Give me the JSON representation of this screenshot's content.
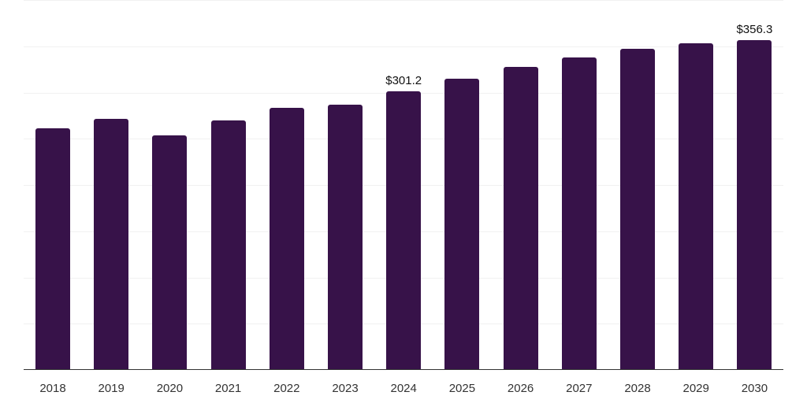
{
  "chart_data": {
    "type": "bar",
    "title": "",
    "xlabel": "",
    "ylabel": "",
    "categories": [
      "2018",
      "2019",
      "2020",
      "2021",
      "2022",
      "2023",
      "2024",
      "2025",
      "2026",
      "2027",
      "2028",
      "2029",
      "2030"
    ],
    "values": [
      261.7,
      271.9,
      254.0,
      269.4,
      283.0,
      286.4,
      301.2,
      314.6,
      327.4,
      337.6,
      347.0,
      352.9,
      356.3
    ],
    "data_labels": [
      {
        "category": "2024",
        "text": "$301.2"
      },
      {
        "category": "2030",
        "text": "$356.3"
      }
    ],
    "ylim": [
      0,
      400
    ],
    "grid": true,
    "gridline_step": 50,
    "legend": null,
    "bar_color": "#371249"
  },
  "colors": {
    "bar": "#371249",
    "grid": "#f1f1f1",
    "axis": "#333333",
    "tick_text": "#333333",
    "label_text": "#111111"
  }
}
